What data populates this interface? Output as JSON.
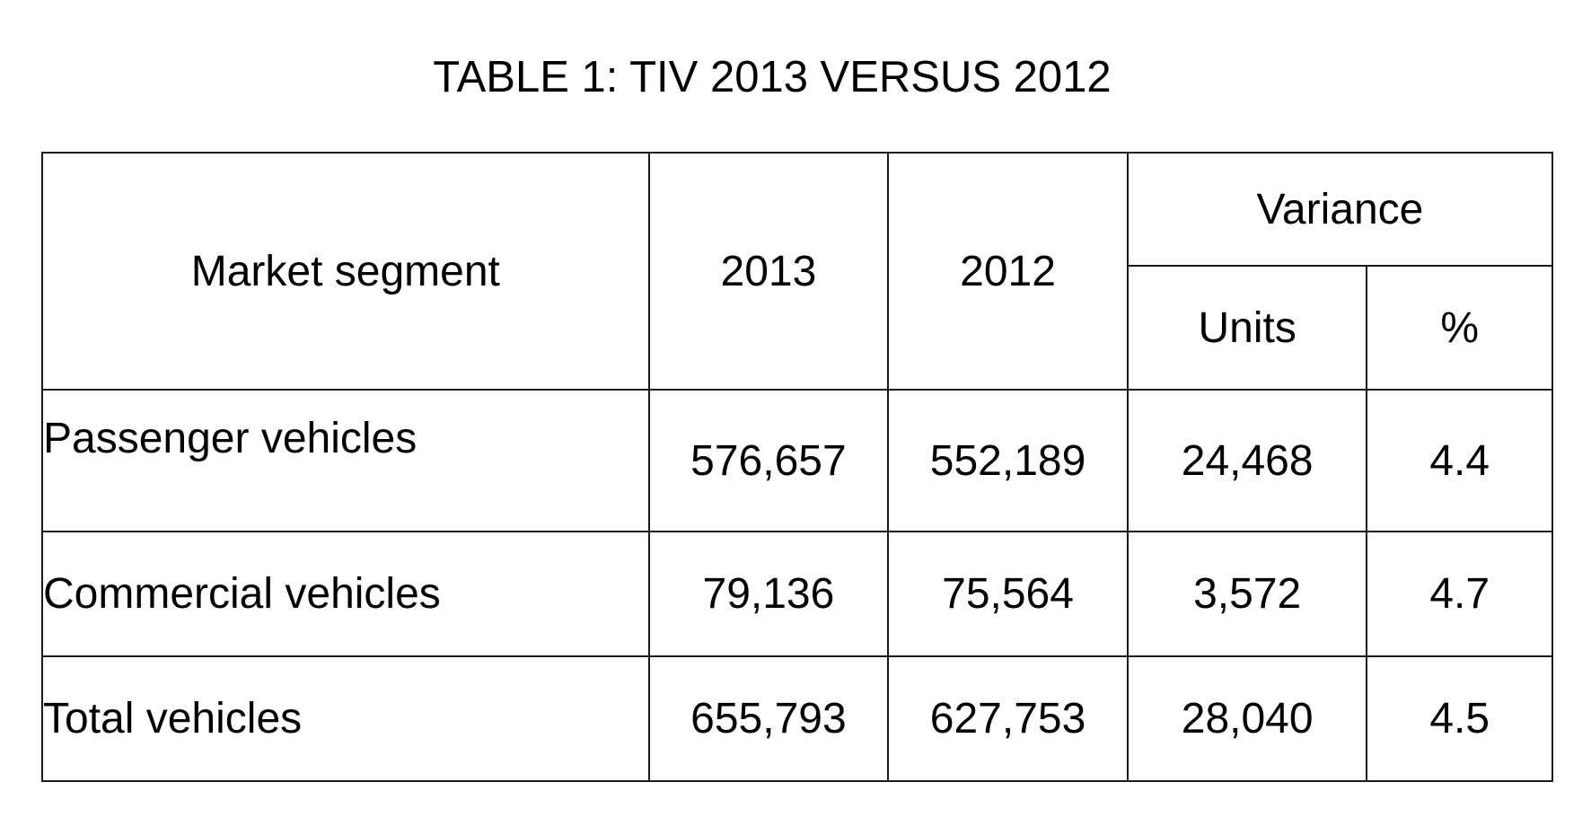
{
  "title": "TABLE 1: TIV 2013 VERSUS 2012",
  "table": {
    "headers": {
      "segment": "Market segment",
      "year1": "2013",
      "year2": "2012",
      "variance": "Variance",
      "units": "Units",
      "percent": "%"
    },
    "rows": [
      {
        "segment": "Passenger vehicles",
        "y2013": "576,657",
        "y2012": "552,189",
        "units": "24,468",
        "percent": "4.4"
      },
      {
        "segment": "Commercial vehicles",
        "y2013": "79,136",
        "y2012": "75,564",
        "units": "3,572",
        "percent": "4.7"
      },
      {
        "segment": "Total vehicles",
        "y2013": "655,793",
        "y2012": "627,753",
        "units": "28,040",
        "percent": "4.5"
      }
    ]
  }
}
